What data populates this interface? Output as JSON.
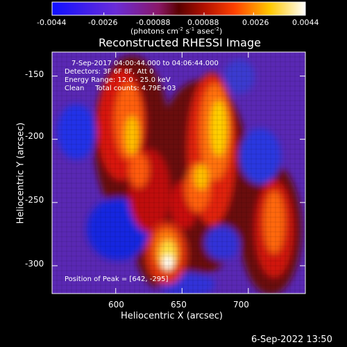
{
  "colorbar": {
    "ticks": [
      "-0.0044",
      "-0.0026",
      "-0.00088",
      "0.00088",
      "0.0026",
      "0.0044"
    ],
    "unit_text": "(photons cm",
    "unit_exp1": "-2",
    "unit_mid": " s",
    "unit_exp2": "-1",
    "unit_mid2": " asec",
    "unit_exp3": "-2",
    "unit_close": ")"
  },
  "plot": {
    "title": "Reconstructed RHESSI Image",
    "info_lines": [
      "7-Sep-2017 04:00:44.000 to 04:06:44.000",
      "Detectors: 3F 6F 8F, Att 0",
      "Energy Range: 12.0 - 25.0 keV",
      "Clean     Total counts: 4.79E+03"
    ],
    "peak_text": "Position of Peak = [642, -295]",
    "xlabel": "Heliocentric X (arcsec)",
    "ylabel": "Heliocentric Y (arcsec)",
    "xticks": [
      "600",
      "650",
      "700"
    ],
    "yticks": [
      "-150",
      "-200",
      "-250",
      "-300"
    ],
    "timestamp": "6-Sep-2022 13:50"
  },
  "chart_data": {
    "type": "heatmap",
    "title": "Reconstructed RHESSI Image",
    "xlabel": "Heliocentric X (arcsec)",
    "ylabel": "Heliocentric Y (arcsec)",
    "x_ticks": [
      600,
      650,
      700
    ],
    "y_ticks": [
      -150,
      -200,
      -250,
      -300
    ],
    "xlim": [
      552,
      743
    ],
    "ylim": [
      -322,
      -131
    ],
    "color_range": [
      -0.0044,
      0.0044
    ],
    "color_unit": "photons cm^-2 s^-1 asec^-2",
    "colormap": [
      "#0000ff",
      "#7a2fc8",
      "#a01010",
      "#ff3000",
      "#ffcc00",
      "#ffffff"
    ],
    "peak_position": [
      642,
      -295
    ],
    "grid": false,
    "legend": "colorbar-top"
  }
}
